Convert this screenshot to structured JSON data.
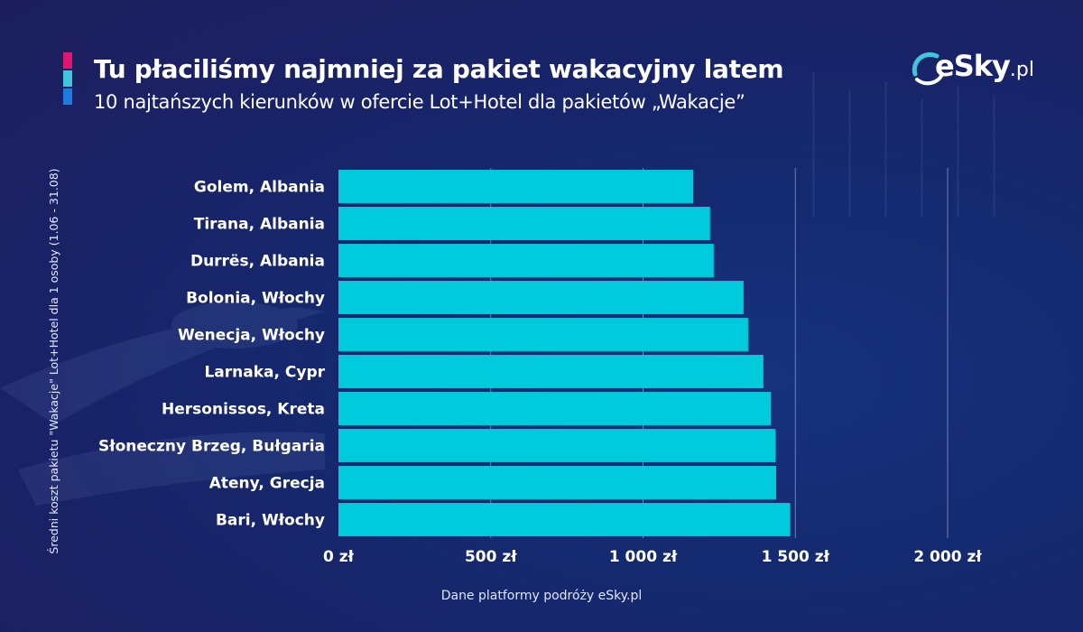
{
  "header": {
    "title": "Tu płaciliśmy najmniej za pakiet wakacyjny latem",
    "subtitle": "10 najtańszych kierunków w ofercie Lot+Hotel dla pakietów „Wakacje”",
    "accent_colors": [
      "#e0156e",
      "#3fc6dc",
      "#1f7bdf"
    ]
  },
  "logo": {
    "brand": "eSky",
    "suffix": ".pl",
    "icon": "esky-swoosh-icon"
  },
  "footer": {
    "source": "Dane platformy podróży eSky.pl"
  },
  "colors": {
    "bar": "#00cbdd",
    "gridline": "#6f7fb8",
    "text": "#ffffff"
  },
  "chart_data": {
    "type": "bar",
    "orientation": "horizontal",
    "title": "",
    "xlabel": "",
    "ylabel": "Średni koszt pakietu \"Wakacje\" Lot+Hotel dla 1 osoby (1.06 - 31.08)",
    "xlim": [
      0,
      2000
    ],
    "x_ticks": [
      0,
      500,
      1000,
      1500,
      2000
    ],
    "x_tick_labels": [
      "0 zł",
      "500 zł",
      "1 000 zł",
      "1 500 zł",
      "2 000 zł"
    ],
    "grid": "vertical",
    "categories": [
      "Golem, Albania",
      "Tirana, Albania",
      "Durrës, Albania",
      "Bolonia, Włochy",
      "Wenecja, Włochy",
      "Larnaka, Cypr",
      "Hersonissos, Kreta",
      "Słoneczny Brzeg, Bułgaria",
      "Ateny, Grecja",
      "Bari, Włochy"
    ],
    "values": [
      1165,
      1220,
      1232,
      1330,
      1345,
      1395,
      1420,
      1435,
      1437,
      1483
    ]
  }
}
